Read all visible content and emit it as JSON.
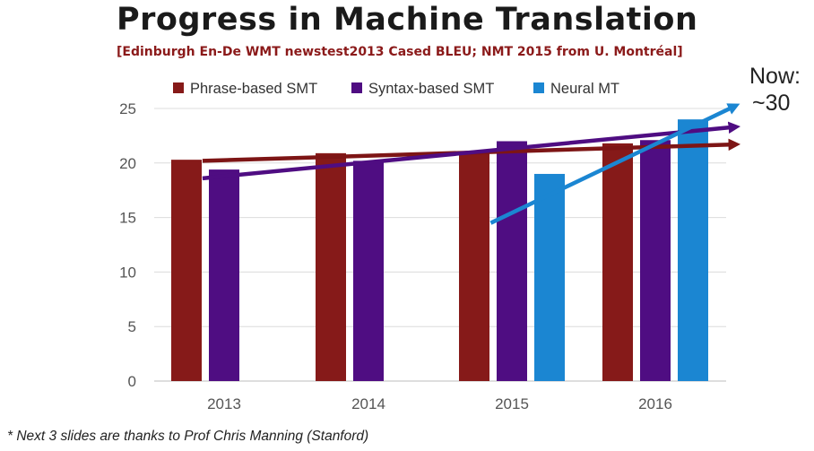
{
  "slide": {
    "title": "Progress in Machine Translation",
    "subtitle": "[Edinburgh En-De WMT newstest2013 Cased BLEU; NMT 2015 from U. Montréal]",
    "annotation_line1": "Now:",
    "annotation_line2": "~30",
    "footnote": "* Next 3 slides are thanks to Prof Chris Manning (Stanford)"
  },
  "chart_data": {
    "type": "bar",
    "title": "",
    "xlabel": "",
    "ylabel": "",
    "categories": [
      "2013",
      "2014",
      "2015",
      "2016"
    ],
    "ylim": [
      0,
      25
    ],
    "yticks": [
      0,
      5,
      10,
      15,
      20,
      25
    ],
    "grid": true,
    "legend_position": "top",
    "series": [
      {
        "name": "Phrase-based SMT",
        "color": "#861a19",
        "values": [
          20.3,
          20.9,
          20.9,
          21.8
        ]
      },
      {
        "name": "Syntax-based SMT",
        "color": "#4f0d82",
        "values": [
          19.4,
          20.2,
          22.0,
          22.1
        ]
      },
      {
        "name": "Neural MT",
        "color": "#1b86d2",
        "values": [
          null,
          null,
          19.0,
          24.0
        ]
      }
    ],
    "trend_arrows": [
      {
        "series": "Phrase-based SMT",
        "color": "#7d1515",
        "from": [
          2012.85,
          20.2
        ],
        "to": [
          2016.55,
          21.7
        ]
      },
      {
        "series": "Syntax-based SMT",
        "color": "#4f0d82",
        "from": [
          2012.85,
          18.6
        ],
        "to": [
          2016.55,
          23.3
        ]
      },
      {
        "series": "Neural MT",
        "color": "#1b86d2",
        "from": [
          2014.85,
          14.5
        ],
        "to": [
          2016.55,
          25.2
        ]
      }
    ]
  }
}
